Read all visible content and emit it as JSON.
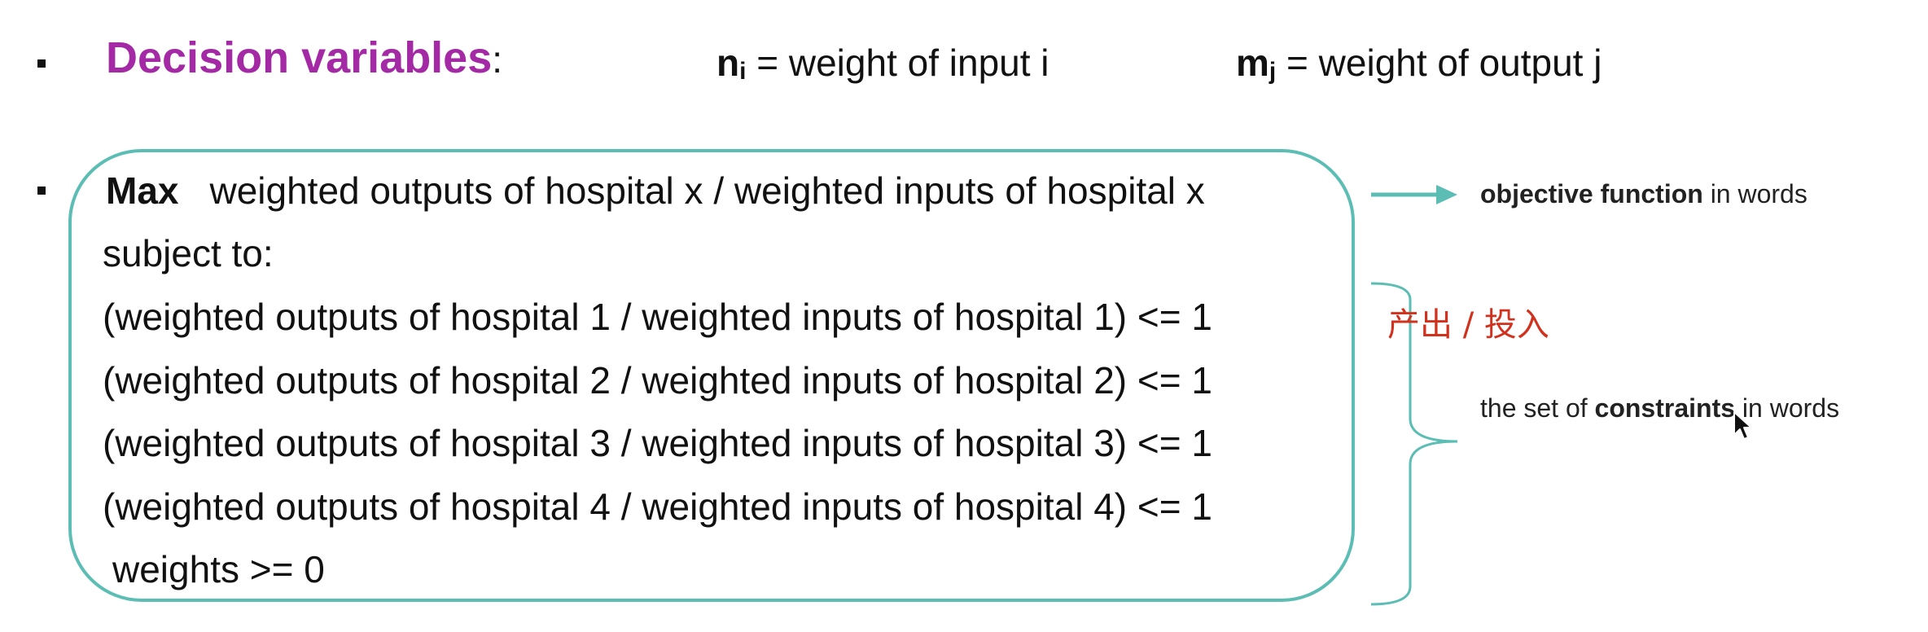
{
  "decision_variables": {
    "title": "Decision variables",
    "colon": ":",
    "var_n": {
      "symbol": "n",
      "subscript": "i",
      "text": " = weight of input i"
    },
    "var_m": {
      "symbol": "m",
      "subscript": "j",
      "text": " = weight of output j"
    }
  },
  "model": {
    "objective_keyword": "Max",
    "objective_text": "weighted outputs of hospital x / weighted inputs of hospital x",
    "subject_to": "subject to:",
    "constraints": [
      "(weighted outputs of hospital 1 / weighted inputs of hospital 1) <= 1",
      "(weighted outputs of hospital 2 / weighted inputs of hospital 2) <= 1",
      "(weighted outputs of hospital 3 / weighted inputs of hospital 3) <= 1",
      "(weighted outputs of hospital 4 / weighted inputs of hospital 4) <= 1"
    ],
    "nonnegativity": "weights >= 0"
  },
  "annotations": {
    "objective": {
      "bold": "objective function",
      "rest": " in words"
    },
    "chinese_note": "产出 / 投入",
    "constraints": {
      "prefix": "the set of ",
      "bold": "constraints",
      "rest": " in words"
    }
  },
  "colors": {
    "title_purple": "#a32aa4",
    "box_teal": "#5bbdb3",
    "chinese_red": "#d0321e"
  },
  "icons": [
    "arrow-right-icon",
    "right-brace-icon",
    "mouse-cursor-icon"
  ]
}
